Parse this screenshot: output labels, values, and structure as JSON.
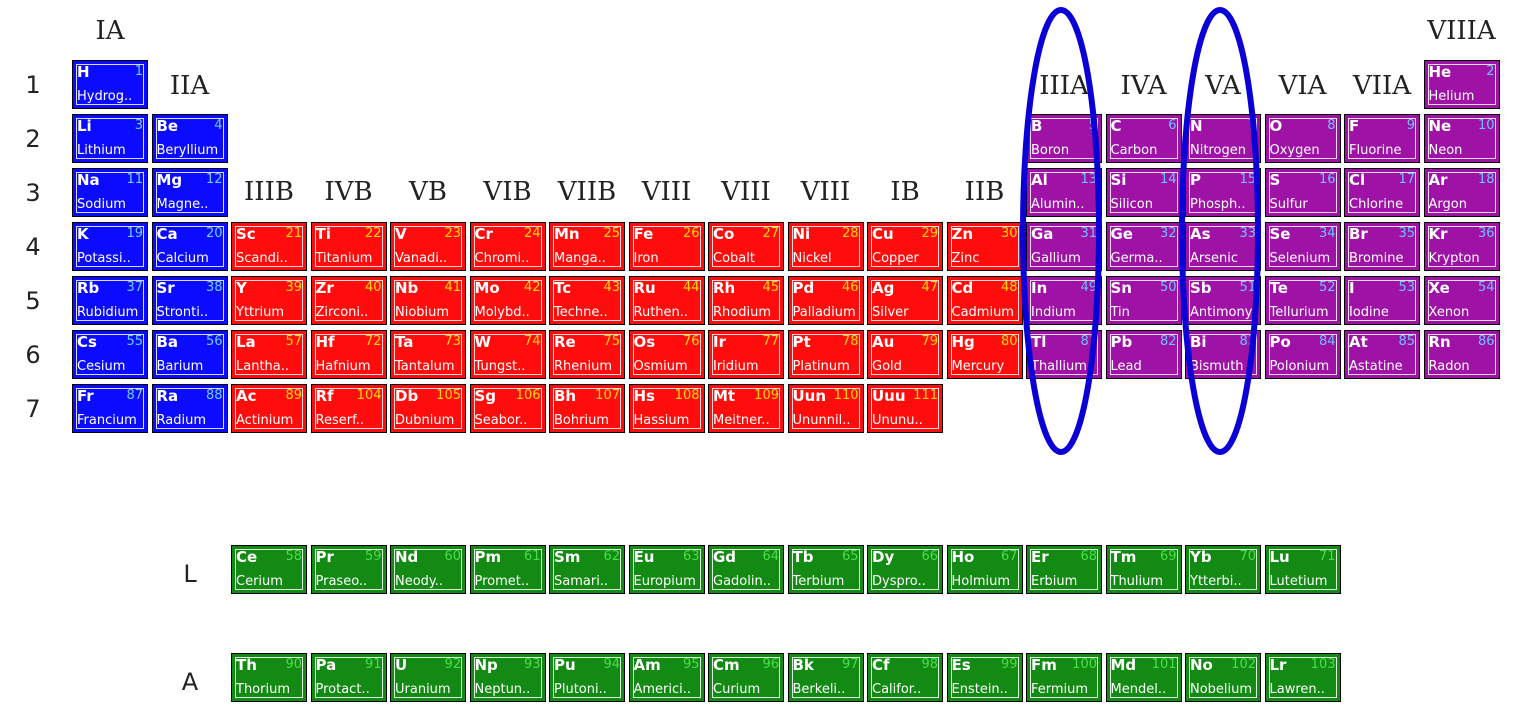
{
  "colors": {
    "s_block": "#0b0bff",
    "d_block": "#ff0d0d",
    "p_block": "#9e12a6",
    "f_block": "#138a13",
    "highlight_ellipse": "#0a00d6"
  },
  "group_labels": [
    {
      "text": "IA",
      "col": 1,
      "row": 0
    },
    {
      "text": "IIA",
      "col": 2,
      "row": 1
    },
    {
      "text": "IIIB",
      "col": 3,
      "row": 3
    },
    {
      "text": "IVB",
      "col": 4,
      "row": 3
    },
    {
      "text": "VB",
      "col": 5,
      "row": 3
    },
    {
      "text": "VIB",
      "col": 6,
      "row": 3
    },
    {
      "text": "VIIB",
      "col": 7,
      "row": 3
    },
    {
      "text": "VIII",
      "col": 8,
      "row": 3
    },
    {
      "text": "VIII",
      "col": 9,
      "row": 3
    },
    {
      "text": "VIII",
      "col": 10,
      "row": 3
    },
    {
      "text": "IB",
      "col": 11,
      "row": 3
    },
    {
      "text": "IIB",
      "col": 12,
      "row": 3
    },
    {
      "text": "IIIA",
      "col": 13,
      "row": 1
    },
    {
      "text": "IVA",
      "col": 14,
      "row": 1
    },
    {
      "text": "VA",
      "col": 15,
      "row": 1
    },
    {
      "text": "VIA",
      "col": 16,
      "row": 1
    },
    {
      "text": "VIIA",
      "col": 17,
      "row": 1
    },
    {
      "text": "VIIIA",
      "col": 18,
      "row": 0
    }
  ],
  "period_labels": [
    "1",
    "2",
    "3",
    "4",
    "5",
    "6",
    "7"
  ],
  "series_labels": [
    {
      "text": "L",
      "row": "L"
    },
    {
      "text": "A",
      "row": "A"
    }
  ],
  "elements": [
    {
      "sym": "H",
      "num": "1",
      "name": "Hydrog..",
      "col": 1,
      "row": 1,
      "type": "s"
    },
    {
      "sym": "He",
      "num": "2",
      "name": "Helium",
      "col": 18,
      "row": 1,
      "type": "p"
    },
    {
      "sym": "Li",
      "num": "3",
      "name": "Lithium",
      "col": 1,
      "row": 2,
      "type": "s"
    },
    {
      "sym": "Be",
      "num": "4",
      "name": "Beryllium",
      "col": 2,
      "row": 2,
      "type": "s"
    },
    {
      "sym": "B",
      "num": "5",
      "name": "Boron",
      "col": 13,
      "row": 2,
      "type": "p"
    },
    {
      "sym": "C",
      "num": "6",
      "name": "Carbon",
      "col": 14,
      "row": 2,
      "type": "p"
    },
    {
      "sym": "N",
      "num": "7",
      "name": "Nitrogen",
      "col": 15,
      "row": 2,
      "type": "p"
    },
    {
      "sym": "O",
      "num": "8",
      "name": "Oxygen",
      "col": 16,
      "row": 2,
      "type": "p"
    },
    {
      "sym": "F",
      "num": "9",
      "name": "Fluorine",
      "col": 17,
      "row": 2,
      "type": "p"
    },
    {
      "sym": "Ne",
      "num": "10",
      "name": "Neon",
      "col": 18,
      "row": 2,
      "type": "p"
    },
    {
      "sym": "Na",
      "num": "11",
      "name": "Sodium",
      "col": 1,
      "row": 3,
      "type": "s"
    },
    {
      "sym": "Mg",
      "num": "12",
      "name": "Magne..",
      "col": 2,
      "row": 3,
      "type": "s"
    },
    {
      "sym": "Al",
      "num": "13",
      "name": "Alumin..",
      "col": 13,
      "row": 3,
      "type": "p"
    },
    {
      "sym": "Si",
      "num": "14",
      "name": "Silicon",
      "col": 14,
      "row": 3,
      "type": "p"
    },
    {
      "sym": "P",
      "num": "15",
      "name": "Phosph..",
      "col": 15,
      "row": 3,
      "type": "p"
    },
    {
      "sym": "S",
      "num": "16",
      "name": "Sulfur",
      "col": 16,
      "row": 3,
      "type": "p"
    },
    {
      "sym": "Cl",
      "num": "17",
      "name": "Chlorine",
      "col": 17,
      "row": 3,
      "type": "p"
    },
    {
      "sym": "Ar",
      "num": "18",
      "name": "Argon",
      "col": 18,
      "row": 3,
      "type": "p"
    },
    {
      "sym": "K",
      "num": "19",
      "name": "Potassi..",
      "col": 1,
      "row": 4,
      "type": "s"
    },
    {
      "sym": "Ca",
      "num": "20",
      "name": "Calcium",
      "col": 2,
      "row": 4,
      "type": "s"
    },
    {
      "sym": "Sc",
      "num": "21",
      "name": "Scandi..",
      "col": 3,
      "row": 4,
      "type": "d"
    },
    {
      "sym": "Ti",
      "num": "22",
      "name": "Titanium",
      "col": 4,
      "row": 4,
      "type": "d"
    },
    {
      "sym": "V",
      "num": "23",
      "name": "Vanadi..",
      "col": 5,
      "row": 4,
      "type": "d"
    },
    {
      "sym": "Cr",
      "num": "24",
      "name": "Chromi..",
      "col": 6,
      "row": 4,
      "type": "d"
    },
    {
      "sym": "Mn",
      "num": "25",
      "name": "Manga..",
      "col": 7,
      "row": 4,
      "type": "d"
    },
    {
      "sym": "Fe",
      "num": "26",
      "name": "Iron",
      "col": 8,
      "row": 4,
      "type": "d"
    },
    {
      "sym": "Co",
      "num": "27",
      "name": "Cobalt",
      "col": 9,
      "row": 4,
      "type": "d"
    },
    {
      "sym": "Ni",
      "num": "28",
      "name": "Nickel",
      "col": 10,
      "row": 4,
      "type": "d"
    },
    {
      "sym": "Cu",
      "num": "29",
      "name": "Copper",
      "col": 11,
      "row": 4,
      "type": "d"
    },
    {
      "sym": "Zn",
      "num": "30",
      "name": "Zinc",
      "col": 12,
      "row": 4,
      "type": "d"
    },
    {
      "sym": "Ga",
      "num": "31",
      "name": "Gallium",
      "col": 13,
      "row": 4,
      "type": "p"
    },
    {
      "sym": "Ge",
      "num": "32",
      "name": "Germa..",
      "col": 14,
      "row": 4,
      "type": "p"
    },
    {
      "sym": "As",
      "num": "33",
      "name": "Arsenic",
      "col": 15,
      "row": 4,
      "type": "p"
    },
    {
      "sym": "Se",
      "num": "34",
      "name": "Selenium",
      "col": 16,
      "row": 4,
      "type": "p"
    },
    {
      "sym": "Br",
      "num": "35",
      "name": "Bromine",
      "col": 17,
      "row": 4,
      "type": "p"
    },
    {
      "sym": "Kr",
      "num": "36",
      "name": "Krypton",
      "col": 18,
      "row": 4,
      "type": "p"
    },
    {
      "sym": "Rb",
      "num": "37",
      "name": "Rubidium",
      "col": 1,
      "row": 5,
      "type": "s"
    },
    {
      "sym": "Sr",
      "num": "38",
      "name": "Stronti..",
      "col": 2,
      "row": 5,
      "type": "s"
    },
    {
      "sym": "Y",
      "num": "39",
      "name": "Yttrium",
      "col": 3,
      "row": 5,
      "type": "d"
    },
    {
      "sym": "Zr",
      "num": "40",
      "name": "Zirconi..",
      "col": 4,
      "row": 5,
      "type": "d"
    },
    {
      "sym": "Nb",
      "num": "41",
      "name": "Niobium",
      "col": 5,
      "row": 5,
      "type": "d"
    },
    {
      "sym": "Mo",
      "num": "42",
      "name": "Molybd..",
      "col": 6,
      "row": 5,
      "type": "d"
    },
    {
      "sym": "Tc",
      "num": "43",
      "name": "Techne..",
      "col": 7,
      "row": 5,
      "type": "d"
    },
    {
      "sym": "Ru",
      "num": "44",
      "name": "Ruthen..",
      "col": 8,
      "row": 5,
      "type": "d"
    },
    {
      "sym": "Rh",
      "num": "45",
      "name": "Rhodium",
      "col": 9,
      "row": 5,
      "type": "d"
    },
    {
      "sym": "Pd",
      "num": "46",
      "name": "Palladium",
      "col": 10,
      "row": 5,
      "type": "d"
    },
    {
      "sym": "Ag",
      "num": "47",
      "name": "Silver",
      "col": 11,
      "row": 5,
      "type": "d"
    },
    {
      "sym": "Cd",
      "num": "48",
      "name": "Cadmium",
      "col": 12,
      "row": 5,
      "type": "d"
    },
    {
      "sym": "In",
      "num": "49",
      "name": "Indium",
      "col": 13,
      "row": 5,
      "type": "p"
    },
    {
      "sym": "Sn",
      "num": "50",
      "name": "Tin",
      "col": 14,
      "row": 5,
      "type": "p"
    },
    {
      "sym": "Sb",
      "num": "51",
      "name": "Antimony",
      "col": 15,
      "row": 5,
      "type": "p"
    },
    {
      "sym": "Te",
      "num": "52",
      "name": "Tellurium",
      "col": 16,
      "row": 5,
      "type": "p"
    },
    {
      "sym": "I",
      "num": "53",
      "name": "Iodine",
      "col": 17,
      "row": 5,
      "type": "p"
    },
    {
      "sym": "Xe",
      "num": "54",
      "name": "Xenon",
      "col": 18,
      "row": 5,
      "type": "p"
    },
    {
      "sym": "Cs",
      "num": "55",
      "name": "Cesium",
      "col": 1,
      "row": 6,
      "type": "s"
    },
    {
      "sym": "Ba",
      "num": "56",
      "name": "Barium",
      "col": 2,
      "row": 6,
      "type": "s"
    },
    {
      "sym": "La",
      "num": "57",
      "name": "Lantha..",
      "col": 3,
      "row": 6,
      "type": "d"
    },
    {
      "sym": "Hf",
      "num": "72",
      "name": "Hafnium",
      "col": 4,
      "row": 6,
      "type": "d"
    },
    {
      "sym": "Ta",
      "num": "73",
      "name": "Tantalum",
      "col": 5,
      "row": 6,
      "type": "d"
    },
    {
      "sym": "W",
      "num": "74",
      "name": "Tungst..",
      "col": 6,
      "row": 6,
      "type": "d"
    },
    {
      "sym": "Re",
      "num": "75",
      "name": "Rhenium",
      "col": 7,
      "row": 6,
      "type": "d"
    },
    {
      "sym": "Os",
      "num": "76",
      "name": "Osmium",
      "col": 8,
      "row": 6,
      "type": "d"
    },
    {
      "sym": "Ir",
      "num": "77",
      "name": "Iridium",
      "col": 9,
      "row": 6,
      "type": "d"
    },
    {
      "sym": "Pt",
      "num": "78",
      "name": "Platinum",
      "col": 10,
      "row": 6,
      "type": "d"
    },
    {
      "sym": "Au",
      "num": "79",
      "name": "Gold",
      "col": 11,
      "row": 6,
      "type": "d"
    },
    {
      "sym": "Hg",
      "num": "80",
      "name": "Mercury",
      "col": 12,
      "row": 6,
      "type": "d"
    },
    {
      "sym": "Tl",
      "num": "81",
      "name": "Thallium",
      "col": 13,
      "row": 6,
      "type": "p"
    },
    {
      "sym": "Pb",
      "num": "82",
      "name": "Lead",
      "col": 14,
      "row": 6,
      "type": "p"
    },
    {
      "sym": "Bi",
      "num": "83",
      "name": "Bismuth",
      "col": 15,
      "row": 6,
      "type": "p"
    },
    {
      "sym": "Po",
      "num": "84",
      "name": "Polonium",
      "col": 16,
      "row": 6,
      "type": "p"
    },
    {
      "sym": "At",
      "num": "85",
      "name": "Astatine",
      "col": 17,
      "row": 6,
      "type": "p"
    },
    {
      "sym": "Rn",
      "num": "86",
      "name": "Radon",
      "col": 18,
      "row": 6,
      "type": "p"
    },
    {
      "sym": "Fr",
      "num": "87",
      "name": "Francium",
      "col": 1,
      "row": 7,
      "type": "s"
    },
    {
      "sym": "Ra",
      "num": "88",
      "name": "Radium",
      "col": 2,
      "row": 7,
      "type": "s"
    },
    {
      "sym": "Ac",
      "num": "89",
      "name": "Actinium",
      "col": 3,
      "row": 7,
      "type": "d"
    },
    {
      "sym": "Rf",
      "num": "104",
      "name": "Reserf..",
      "col": 4,
      "row": 7,
      "type": "d"
    },
    {
      "sym": "Db",
      "num": "105",
      "name": "Dubnium",
      "col": 5,
      "row": 7,
      "type": "d"
    },
    {
      "sym": "Sg",
      "num": "106",
      "name": "Seabor..",
      "col": 6,
      "row": 7,
      "type": "d"
    },
    {
      "sym": "Bh",
      "num": "107",
      "name": "Bohrium",
      "col": 7,
      "row": 7,
      "type": "d"
    },
    {
      "sym": "Hs",
      "num": "108",
      "name": "Hassium",
      "col": 8,
      "row": 7,
      "type": "d"
    },
    {
      "sym": "Mt",
      "num": "109",
      "name": "Meitner..",
      "col": 9,
      "row": 7,
      "type": "d"
    },
    {
      "sym": "Uun",
      "num": "110",
      "name": "Ununnil..",
      "col": 10,
      "row": 7,
      "type": "d"
    },
    {
      "sym": "Uuu",
      "num": "111",
      "name": "Ununu..",
      "col": 11,
      "row": 7,
      "type": "d"
    },
    {
      "sym": "Ce",
      "num": "58",
      "name": "Cerium",
      "col": 3,
      "row": "L",
      "type": "f"
    },
    {
      "sym": "Pr",
      "num": "59",
      "name": "Praseo..",
      "col": 4,
      "row": "L",
      "type": "f"
    },
    {
      "sym": "Nd",
      "num": "60",
      "name": "Neody..",
      "col": 5,
      "row": "L",
      "type": "f"
    },
    {
      "sym": "Pm",
      "num": "61",
      "name": "Promet..",
      "col": 6,
      "row": "L",
      "type": "f"
    },
    {
      "sym": "Sm",
      "num": "62",
      "name": "Samari..",
      "col": 7,
      "row": "L",
      "type": "f"
    },
    {
      "sym": "Eu",
      "num": "63",
      "name": "Europium",
      "col": 8,
      "row": "L",
      "type": "f"
    },
    {
      "sym": "Gd",
      "num": "64",
      "name": "Gadolin..",
      "col": 9,
      "row": "L",
      "type": "f"
    },
    {
      "sym": "Tb",
      "num": "65",
      "name": "Terbium",
      "col": 10,
      "row": "L",
      "type": "f"
    },
    {
      "sym": "Dy",
      "num": "66",
      "name": "Dyspro..",
      "col": 11,
      "row": "L",
      "type": "f"
    },
    {
      "sym": "Ho",
      "num": "67",
      "name": "Holmium",
      "col": 12,
      "row": "L",
      "type": "f"
    },
    {
      "sym": "Er",
      "num": "68",
      "name": "Erbium",
      "col": 13,
      "row": "L",
      "type": "f"
    },
    {
      "sym": "Tm",
      "num": "69",
      "name": "Thulium",
      "col": 14,
      "row": "L",
      "type": "f"
    },
    {
      "sym": "Yb",
      "num": "70",
      "name": "Ytterbi..",
      "col": 15,
      "row": "L",
      "type": "f"
    },
    {
      "sym": "Lu",
      "num": "71",
      "name": "Lutetium",
      "col": 16,
      "row": "L",
      "type": "f"
    },
    {
      "sym": "Th",
      "num": "90",
      "name": "Thorium",
      "col": 3,
      "row": "A",
      "type": "f"
    },
    {
      "sym": "Pa",
      "num": "91",
      "name": "Protact..",
      "col": 4,
      "row": "A",
      "type": "f"
    },
    {
      "sym": "U",
      "num": "92",
      "name": "Uranium",
      "col": 5,
      "row": "A",
      "type": "f"
    },
    {
      "sym": "Np",
      "num": "93",
      "name": "Neptun..",
      "col": 6,
      "row": "A",
      "type": "f"
    },
    {
      "sym": "Pu",
      "num": "94",
      "name": "Plutoni..",
      "col": 7,
      "row": "A",
      "type": "f"
    },
    {
      "sym": "Am",
      "num": "95",
      "name": "Americi..",
      "col": 8,
      "row": "A",
      "type": "f"
    },
    {
      "sym": "Cm",
      "num": "96",
      "name": "Curium",
      "col": 9,
      "row": "A",
      "type": "f"
    },
    {
      "sym": "Bk",
      "num": "97",
      "name": "Berkeli..",
      "col": 10,
      "row": "A",
      "type": "f"
    },
    {
      "sym": "Cf",
      "num": "98",
      "name": "Califor..",
      "col": 11,
      "row": "A",
      "type": "f"
    },
    {
      "sym": "Es",
      "num": "99",
      "name": "Enstein..",
      "col": 12,
      "row": "A",
      "type": "f"
    },
    {
      "sym": "Fm",
      "num": "100",
      "name": "Fermium",
      "col": 13,
      "row": "A",
      "type": "f"
    },
    {
      "sym": "Md",
      "num": "101",
      "name": "Mendel..",
      "col": 14,
      "row": "A",
      "type": "f"
    },
    {
      "sym": "No",
      "num": "102",
      "name": "Nobelium",
      "col": 15,
      "row": "A",
      "type": "f"
    },
    {
      "sym": "Lr",
      "num": "103",
      "name": "Lawren..",
      "col": 16,
      "row": "A",
      "type": "f"
    }
  ],
  "highlights": [
    {
      "group": "IIIA",
      "col": 13
    },
    {
      "group": "VA",
      "col": 15
    }
  ]
}
